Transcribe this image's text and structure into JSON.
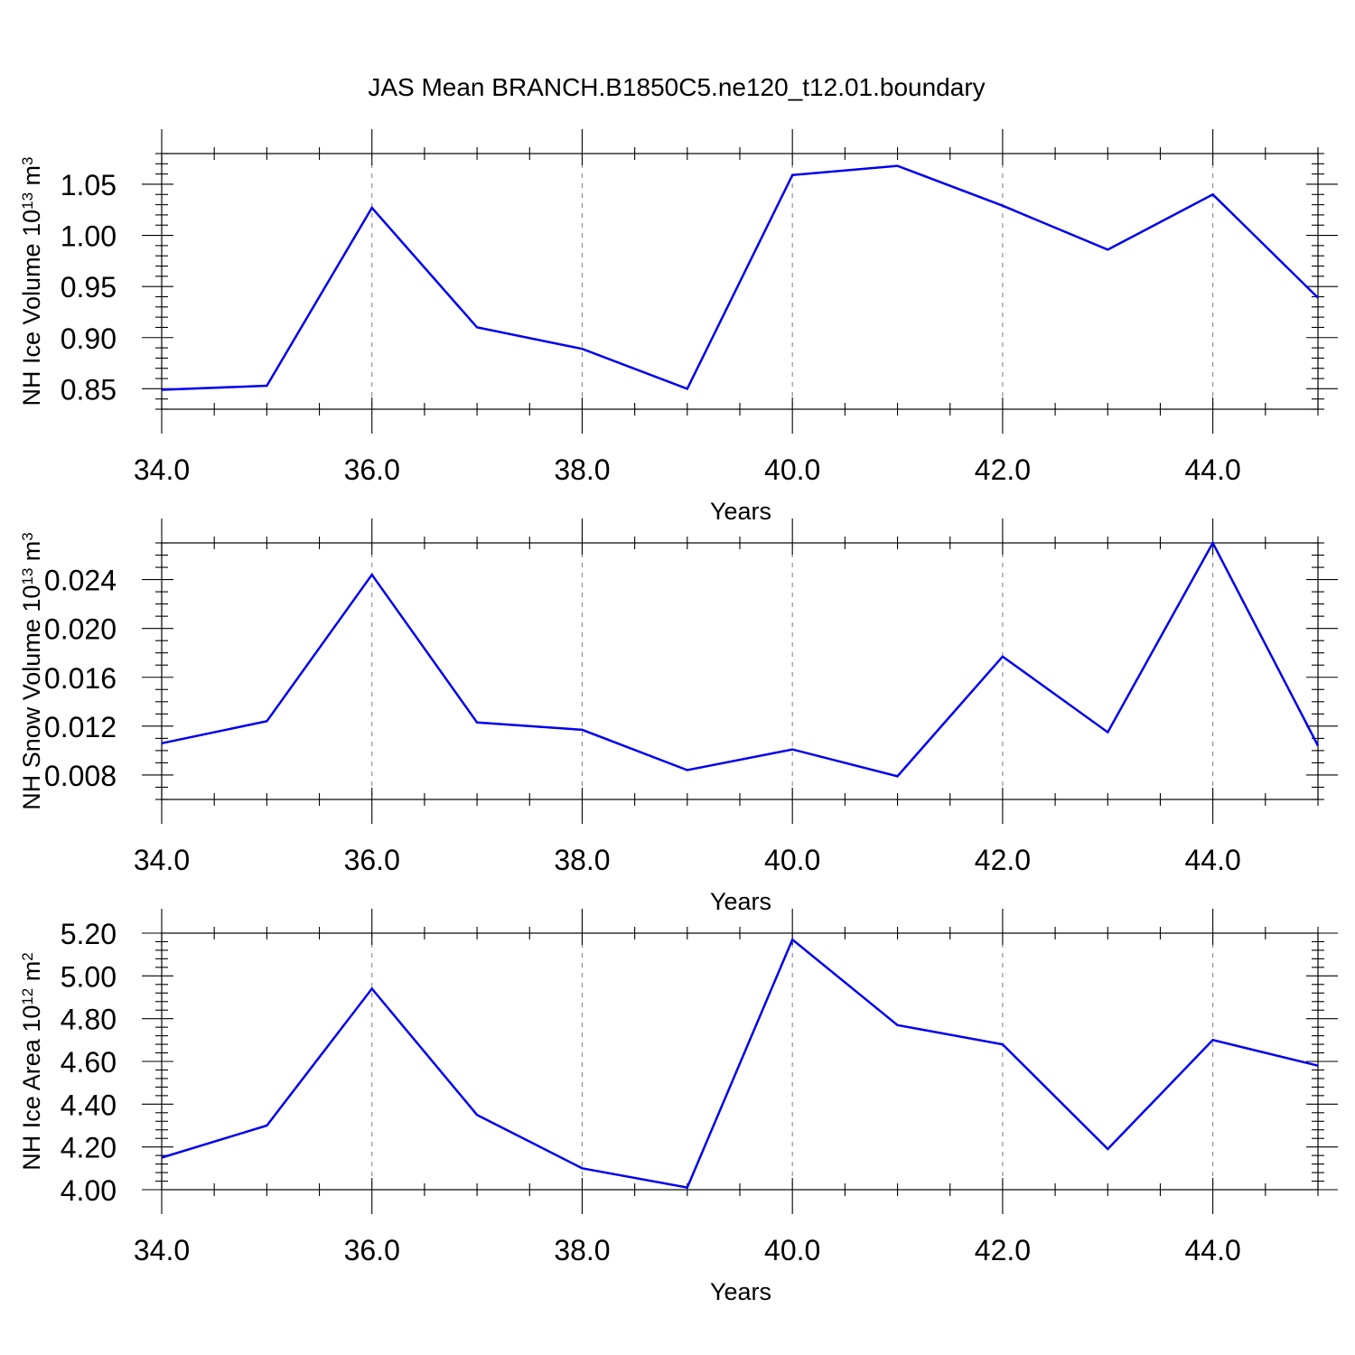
{
  "page": {
    "title": "JAS Mean BRANCH.B1850C5.ne120_t12.01.boundary"
  },
  "chart_data": [
    {
      "type": "line",
      "title": "",
      "xlabel": "Years",
      "ylabel": {
        "base": "NH Ice Volume 10",
        "exp": "13",
        "unit": " m",
        "unit_exp": "3"
      },
      "xlim": [
        34,
        45
      ],
      "ylim": [
        0.83,
        1.08
      ],
      "x_ticks": [
        34,
        36,
        38,
        40,
        42,
        44
      ],
      "x_tick_labels": [
        "34.0",
        "36.0",
        "38.0",
        "40.0",
        "42.0",
        "44.0"
      ],
      "x_minor_step": 0.5,
      "y_ticks": [
        0.85,
        0.9,
        0.95,
        1.0,
        1.05
      ],
      "y_tick_labels": [
        "0.85",
        "0.90",
        "0.95",
        "1.00",
        "1.05"
      ],
      "y_minor_step": 0.01,
      "grid": "vertical dashed at major x ticks",
      "color": "#0000ee",
      "x": [
        34,
        35,
        36,
        37,
        38,
        39,
        40,
        41,
        42,
        43,
        44,
        45
      ],
      "y": [
        0.849,
        0.853,
        1.027,
        0.91,
        0.889,
        0.85,
        1.059,
        1.068,
        1.029,
        0.986,
        1.04,
        0.939
      ]
    },
    {
      "type": "line",
      "title": "",
      "xlabel": "Years",
      "ylabel": {
        "base": "NH Snow Volume 10",
        "exp": "13",
        "unit": " m",
        "unit_exp": "3"
      },
      "xlim": [
        34,
        45
      ],
      "ylim": [
        0.006,
        0.027
      ],
      "x_ticks": [
        34,
        36,
        38,
        40,
        42,
        44
      ],
      "x_tick_labels": [
        "34.0",
        "36.0",
        "38.0",
        "40.0",
        "42.0",
        "44.0"
      ],
      "x_minor_step": 0.5,
      "y_ticks": [
        0.008,
        0.012,
        0.016,
        0.02,
        0.024
      ],
      "y_tick_labels": [
        "0.008",
        "0.012",
        "0.016",
        "0.020",
        "0.024"
      ],
      "y_minor_step": 0.001,
      "grid": "vertical dashed at major x ticks",
      "color": "#0000ee",
      "x": [
        34,
        35,
        36,
        37,
        38,
        39,
        40,
        41,
        42,
        43,
        44,
        45
      ],
      "y": [
        0.0106,
        0.0124,
        0.0244,
        0.0123,
        0.0117,
        0.0084,
        0.0101,
        0.0079,
        0.0177,
        0.0115,
        0.027,
        0.0104
      ]
    },
    {
      "type": "line",
      "title": "",
      "xlabel": "Years",
      "ylabel": {
        "base": "NH Ice Area 10",
        "exp": "12",
        "unit": " m",
        "unit_exp": "2"
      },
      "xlim": [
        34,
        45
      ],
      "ylim": [
        4.0,
        5.2
      ],
      "x_ticks": [
        34,
        36,
        38,
        40,
        42,
        44
      ],
      "x_tick_labels": [
        "34.0",
        "36.0",
        "38.0",
        "40.0",
        "42.0",
        "44.0"
      ],
      "x_minor_step": 0.5,
      "y_ticks": [
        4.0,
        4.2,
        4.4,
        4.6,
        4.8,
        5.0,
        5.2
      ],
      "y_tick_labels": [
        "4.00",
        "4.20",
        "4.40",
        "4.60",
        "4.80",
        "5.00",
        "5.20"
      ],
      "y_minor_step": 0.04,
      "grid": "vertical dashed at major x ticks",
      "color": "#0000ee",
      "x": [
        34,
        35,
        36,
        37,
        38,
        39,
        40,
        41,
        42,
        43,
        44,
        45
      ],
      "y": [
        4.15,
        4.3,
        4.94,
        4.35,
        4.1,
        4.01,
        5.17,
        4.77,
        4.68,
        4.19,
        4.7,
        4.58
      ]
    }
  ]
}
